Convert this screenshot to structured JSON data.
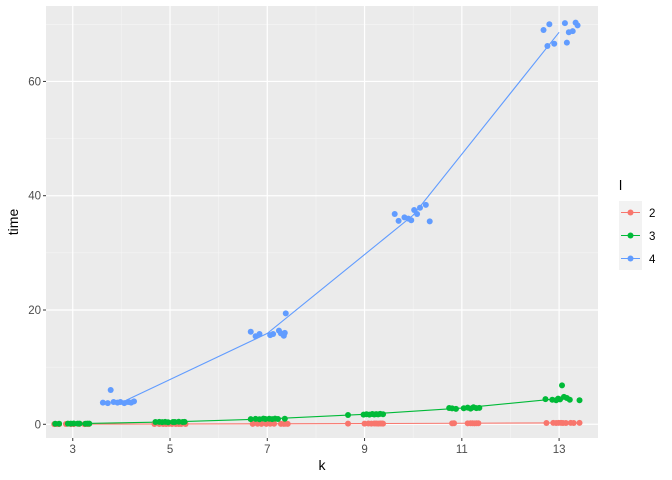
{
  "chart_data": {
    "type": "scatter",
    "title": "",
    "xlabel": "k",
    "ylabel": "time",
    "xlim": [
      2.45,
      13.8
    ],
    "ylim": [
      -2.4,
      73.2
    ],
    "xticks": [
      3,
      5,
      7,
      9,
      11,
      13
    ],
    "yticks": [
      0,
      20,
      40,
      60
    ],
    "grid": true,
    "legend": {
      "title": "l",
      "position": "right"
    },
    "series": [
      {
        "name": "2",
        "color": "#F8766D",
        "points": [
          [
            2.62,
            0.02
          ],
          [
            2.68,
            0.03
          ],
          [
            2.72,
            0.02
          ],
          [
            2.86,
            0.04
          ],
          [
            2.96,
            0.03
          ],
          [
            3.02,
            0.02
          ],
          [
            3.13,
            0.05
          ],
          [
            3.24,
            0.03
          ],
          [
            3.29,
            0.04
          ],
          [
            3.33,
            0.02
          ],
          [
            4.68,
            0.05
          ],
          [
            4.78,
            0.06
          ],
          [
            4.86,
            0.04
          ],
          [
            4.92,
            0.05
          ],
          [
            4.98,
            0.07
          ],
          [
            5.04,
            0.06
          ],
          [
            5.12,
            0.05
          ],
          [
            5.18,
            0.06
          ],
          [
            5.23,
            0.04
          ],
          [
            5.32,
            0.05
          ],
          [
            6.7,
            0.08
          ],
          [
            6.8,
            0.09
          ],
          [
            6.88,
            0.07
          ],
          [
            6.98,
            0.08
          ],
          [
            7.06,
            0.1
          ],
          [
            7.14,
            0.09
          ],
          [
            7.28,
            0.08
          ],
          [
            7.34,
            0.07
          ],
          [
            7.38,
            0.09
          ],
          [
            7.42,
            0.08
          ],
          [
            8.66,
            0.12
          ],
          [
            9.0,
            0.11
          ],
          [
            9.08,
            0.13
          ],
          [
            9.14,
            0.12
          ],
          [
            9.2,
            0.14
          ],
          [
            9.24,
            0.13
          ],
          [
            9.28,
            0.12
          ],
          [
            9.32,
            0.14
          ],
          [
            9.36,
            0.13
          ],
          [
            9.38,
            0.12
          ],
          [
            10.8,
            0.17
          ],
          [
            10.84,
            0.18
          ],
          [
            11.12,
            0.17
          ],
          [
            11.18,
            0.19
          ],
          [
            11.22,
            0.18
          ],
          [
            11.26,
            0.17
          ],
          [
            11.3,
            0.19
          ],
          [
            11.34,
            0.18
          ],
          [
            12.74,
            0.22
          ],
          [
            12.88,
            0.24
          ],
          [
            12.94,
            0.23
          ],
          [
            12.99,
            0.25
          ],
          [
            13.04,
            0.24
          ],
          [
            13.08,
            0.23
          ],
          [
            13.14,
            0.22
          ],
          [
            13.24,
            0.24
          ],
          [
            13.3,
            0.23
          ],
          [
            13.42,
            0.25
          ]
        ],
        "fit": [
          [
            3,
            0.03
          ],
          [
            5,
            0.05
          ],
          [
            7,
            0.08
          ],
          [
            9,
            0.13
          ],
          [
            11,
            0.18
          ],
          [
            13,
            0.24
          ]
        ]
      },
      {
        "name": "3",
        "color": "#00BA38",
        "points": [
          [
            2.64,
            0.1
          ],
          [
            2.72,
            0.09
          ],
          [
            2.9,
            0.12
          ],
          [
            2.96,
            0.11
          ],
          [
            3.02,
            0.13
          ],
          [
            3.1,
            0.11
          ],
          [
            3.14,
            0.12
          ],
          [
            3.26,
            0.1
          ],
          [
            3.3,
            0.12
          ],
          [
            3.34,
            0.11
          ],
          [
            4.7,
            0.4
          ],
          [
            4.78,
            0.43
          ],
          [
            4.84,
            0.38
          ],
          [
            4.9,
            0.42
          ],
          [
            4.96,
            0.35
          ],
          [
            5.06,
            0.41
          ],
          [
            5.1,
            0.39
          ],
          [
            5.18,
            0.44
          ],
          [
            5.26,
            0.4
          ],
          [
            5.3,
            0.42
          ],
          [
            6.66,
            0.9
          ],
          [
            6.76,
            0.95
          ],
          [
            6.84,
            0.88
          ],
          [
            6.92,
            1.0
          ],
          [
            6.96,
            0.92
          ],
          [
            7.04,
            0.97
          ],
          [
            7.1,
            0.91
          ],
          [
            7.16,
            0.99
          ],
          [
            7.22,
            0.93
          ],
          [
            7.36,
            0.96
          ],
          [
            8.66,
            1.62
          ],
          [
            8.98,
            1.7
          ],
          [
            9.04,
            1.75
          ],
          [
            9.1,
            1.68
          ],
          [
            9.16,
            1.8
          ],
          [
            9.2,
            1.72
          ],
          [
            9.24,
            1.78
          ],
          [
            9.28,
            1.74
          ],
          [
            9.32,
            1.83
          ],
          [
            9.38,
            1.76
          ],
          [
            10.74,
            2.85
          ],
          [
            10.8,
            2.78
          ],
          [
            10.88,
            2.7
          ],
          [
            11.04,
            2.8
          ],
          [
            11.12,
            2.92
          ],
          [
            11.18,
            2.75
          ],
          [
            11.24,
            2.98
          ],
          [
            11.3,
            2.82
          ],
          [
            11.36,
            2.88
          ],
          [
            12.72,
            4.4
          ],
          [
            12.86,
            4.3
          ],
          [
            12.94,
            4.2
          ],
          [
            12.98,
            4.5
          ],
          [
            13.02,
            4.35
          ],
          [
            13.06,
            6.8
          ],
          [
            13.1,
            4.8
          ],
          [
            13.16,
            4.6
          ],
          [
            13.22,
            4.3
          ],
          [
            13.42,
            4.2
          ]
        ],
        "fit": [
          [
            3,
            0.11
          ],
          [
            5,
            0.41
          ],
          [
            7,
            0.94
          ],
          [
            9,
            1.74
          ],
          [
            11,
            2.84
          ],
          [
            13,
            4.5
          ]
        ]
      },
      {
        "name": "4",
        "color": "#619CFF",
        "points": [
          [
            3.62,
            3.8
          ],
          [
            3.72,
            3.7
          ],
          [
            3.78,
            6.0
          ],
          [
            3.84,
            3.9
          ],
          [
            3.92,
            3.8
          ],
          [
            3.98,
            3.9
          ],
          [
            4.06,
            3.7
          ],
          [
            4.14,
            3.9
          ],
          [
            4.2,
            3.8
          ],
          [
            4.26,
            4.0
          ],
          [
            6.66,
            16.2
          ],
          [
            6.76,
            15.4
          ],
          [
            6.84,
            15.8
          ],
          [
            7.06,
            15.6
          ],
          [
            7.12,
            15.8
          ],
          [
            7.24,
            16.4
          ],
          [
            7.28,
            15.9
          ],
          [
            7.34,
            15.5
          ],
          [
            7.38,
            19.4
          ],
          [
            7.36,
            16.0
          ],
          [
            9.62,
            36.8
          ],
          [
            9.7,
            35.6
          ],
          [
            9.82,
            36.2
          ],
          [
            9.9,
            36.0
          ],
          [
            9.96,
            35.7
          ],
          [
            10.02,
            37.5
          ],
          [
            10.08,
            36.8
          ],
          [
            10.14,
            37.9
          ],
          [
            10.26,
            38.4
          ],
          [
            10.34,
            35.5
          ],
          [
            12.68,
            69.0
          ],
          [
            12.76,
            66.2
          ],
          [
            12.8,
            70.0
          ],
          [
            12.9,
            66.6
          ],
          [
            13.12,
            70.2
          ],
          [
            13.16,
            66.8
          ],
          [
            13.2,
            68.6
          ],
          [
            13.28,
            68.8
          ],
          [
            13.34,
            70.3
          ],
          [
            13.38,
            69.8
          ]
        ],
        "fit": [
          [
            4.0,
            3.8
          ],
          [
            7.0,
            15.9
          ],
          [
            10.0,
            36.6
          ],
          [
            13.0,
            68.6
          ]
        ]
      }
    ]
  }
}
